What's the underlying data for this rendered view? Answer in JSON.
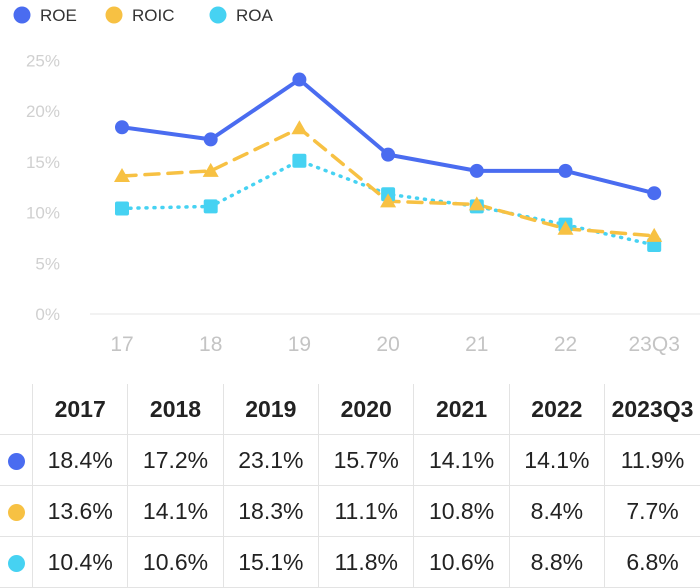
{
  "chart_data": {
    "type": "line",
    "categories": [
      "17",
      "18",
      "19",
      "20",
      "21",
      "22",
      "23Q3"
    ],
    "y_ticks": [
      "0%",
      "5%",
      "10%",
      "15%",
      "20%",
      "25%"
    ],
    "ylim": [
      0,
      25
    ],
    "grid": false,
    "legend_position": "top-left",
    "series": [
      {
        "name": "ROE",
        "color": "#4a6cf0",
        "marker": "circle",
        "line": "solid",
        "values": [
          18.4,
          17.2,
          23.1,
          15.7,
          14.1,
          14.1,
          11.9
        ]
      },
      {
        "name": "ROIC",
        "color": "#f7c143",
        "marker": "triangle",
        "line": "dashed",
        "values": [
          13.6,
          14.1,
          18.3,
          11.1,
          10.8,
          8.4,
          7.7
        ]
      },
      {
        "name": "ROA",
        "color": "#46d2f2",
        "marker": "square",
        "line": "dotted",
        "values": [
          10.4,
          10.6,
          15.1,
          11.8,
          10.6,
          8.8,
          6.8
        ]
      }
    ]
  },
  "table": {
    "headers": [
      "2017",
      "2018",
      "2019",
      "2020",
      "2021",
      "2022",
      "2023Q3"
    ],
    "rows": [
      {
        "name": "ROE",
        "color": "#4a6cf0",
        "cells": [
          "18.4%",
          "17.2%",
          "23.1%",
          "15.7%",
          "14.1%",
          "14.1%",
          "11.9%"
        ]
      },
      {
        "name": "ROIC",
        "color": "#f7c143",
        "cells": [
          "13.6%",
          "14.1%",
          "18.3%",
          "11.1%",
          "10.8%",
          "8.4%",
          "7.7%"
        ]
      },
      {
        "name": "ROA",
        "color": "#46d2f2",
        "cells": [
          "10.4%",
          "10.6%",
          "15.1%",
          "11.8%",
          "10.6%",
          "8.8%",
          "6.8%"
        ]
      }
    ]
  }
}
